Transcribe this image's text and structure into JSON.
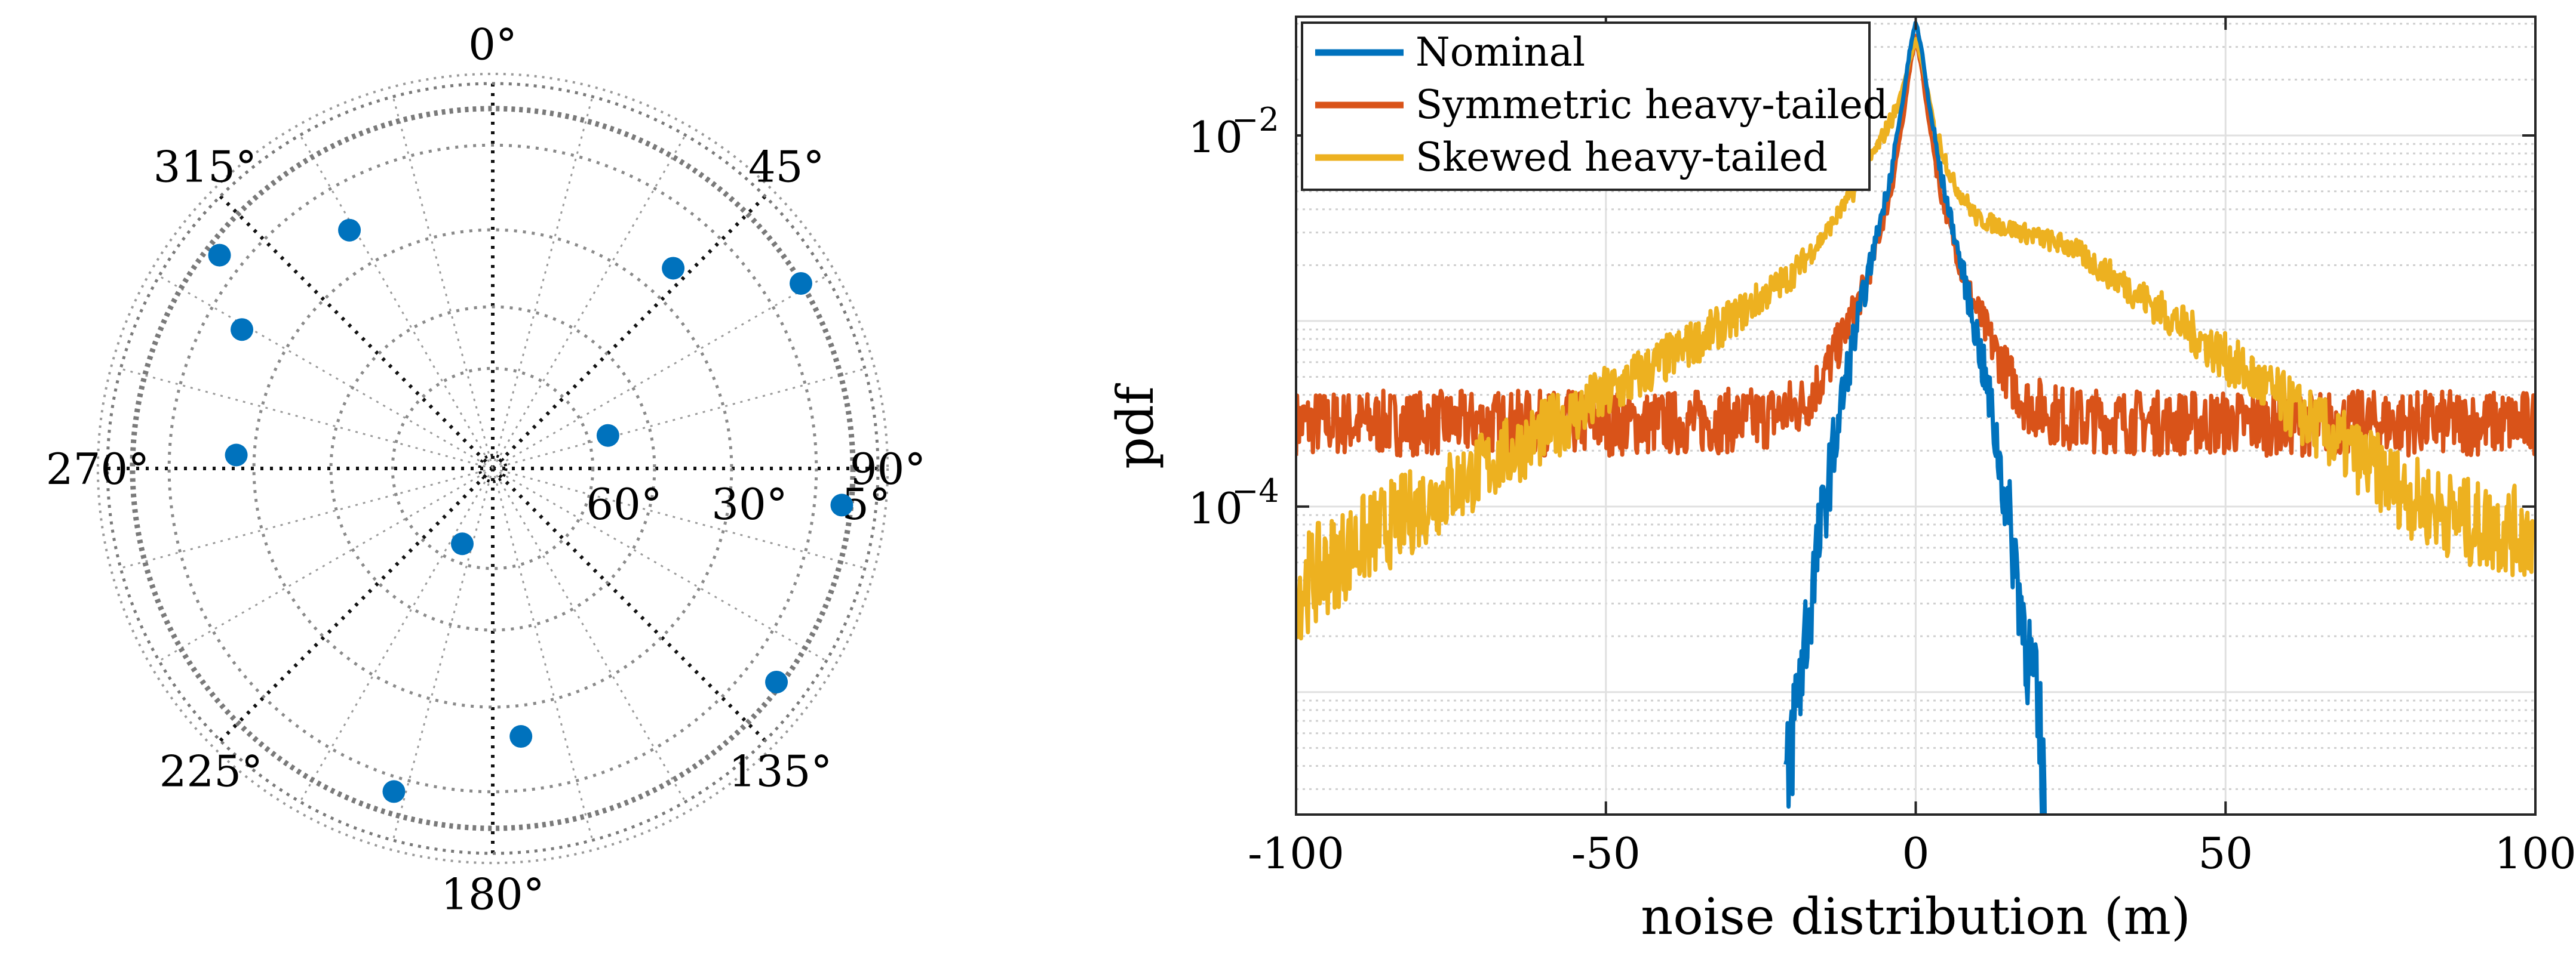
{
  "chart_data": [
    {
      "type": "scatter",
      "subtype": "polar",
      "title": "",
      "angle_ticks": [
        "0°",
        "45°",
        "90°",
        "135°",
        "180°",
        "225°",
        "270°",
        "315°"
      ],
      "angle_tick_values_deg": [
        0,
        45,
        90,
        135,
        180,
        225,
        270,
        315
      ],
      "elevation_labels": [
        "60°",
        "30°",
        "5°"
      ],
      "elevation_label_values_deg": [
        60,
        30,
        5
      ],
      "radial_axis": "elevation angle (90° at center, 0° at outer ring)",
      "marker_color": "#0072BD",
      "points": [
        {
          "azimuth_deg": 329,
          "elevation_deg": 25
        },
        {
          "azimuth_deg": 308,
          "elevation_deg": 9
        },
        {
          "azimuth_deg": 299,
          "elevation_deg": 23
        },
        {
          "azimuth_deg": 273,
          "elevation_deg": 30
        },
        {
          "azimuth_deg": 59,
          "elevation_deg": 6
        },
        {
          "azimuth_deg": 42,
          "elevation_deg": 27
        },
        {
          "azimuth_deg": 74,
          "elevation_deg": 62
        },
        {
          "azimuth_deg": 96,
          "elevation_deg": 8
        },
        {
          "azimuth_deg": 127,
          "elevation_deg": 7
        },
        {
          "azimuth_deg": 174,
          "elevation_deg": 27
        },
        {
          "azimuth_deg": 197,
          "elevation_deg": 11
        },
        {
          "azimuth_deg": 202,
          "elevation_deg": 71
        }
      ]
    },
    {
      "type": "line",
      "title": "",
      "xlabel": "noise distribution (m)",
      "ylabel": "pdf",
      "xlim": [
        -100,
        100
      ],
      "ylog_lim": [
        -5.66,
        -1.36
      ],
      "yscale": "log",
      "xticks": [
        -100,
        -50,
        0,
        50,
        100
      ],
      "xtick_labels": [
        "-100",
        "-50",
        "0",
        "50",
        "100"
      ],
      "yticks_major_exp": [
        -4,
        -2
      ],
      "yticks_base": "10",
      "yticks_exp_labels": [
        "−4",
        "−2"
      ],
      "grid": true,
      "legend_position": "top-left",
      "series": [
        {
          "name": "Nominal",
          "color": "#0072BD",
          "x": [
            -21,
            -20,
            -18,
            -16,
            -14,
            -12,
            -10,
            -8,
            -6,
            -4,
            -2,
            -1,
            0,
            1,
            2,
            4,
            6,
            8,
            10,
            12,
            14,
            16,
            18,
            20,
            21
          ],
          "log10_y": [
            -5.66,
            -5.25,
            -4.75,
            -4.28,
            -3.85,
            -3.45,
            -3.1,
            -2.8,
            -2.5,
            -2.2,
            -1.8,
            -1.55,
            -1.38,
            -1.55,
            -1.8,
            -2.2,
            -2.5,
            -2.8,
            -3.1,
            -3.45,
            -3.85,
            -4.28,
            -4.75,
            -5.25,
            -5.66
          ]
        },
        {
          "name": "Symmetric heavy-tailed",
          "color": "#D95319",
          "x": [
            -100,
            -80,
            -60,
            -40,
            -25,
            -18,
            -15,
            -12,
            -10,
            -8,
            -6,
            -4,
            -2,
            -1,
            0,
            1,
            2,
            4,
            6,
            8,
            10,
            12,
            15,
            18,
            25,
            40,
            60,
            80,
            100
          ],
          "log10_y": [
            -3.55,
            -3.55,
            -3.55,
            -3.55,
            -3.53,
            -3.45,
            -3.3,
            -3.1,
            -2.95,
            -2.8,
            -2.55,
            -2.3,
            -1.9,
            -1.65,
            -1.47,
            -1.65,
            -1.9,
            -2.3,
            -2.55,
            -2.8,
            -2.95,
            -3.1,
            -3.3,
            -3.45,
            -3.53,
            -3.55,
            -3.55,
            -3.55,
            -3.55
          ]
        },
        {
          "name": "Skewed heavy-tailed",
          "color": "#EDB120",
          "x": [
            -100,
            -90,
            -80,
            -70,
            -60,
            -50,
            -40,
            -30,
            -20,
            -15,
            -10,
            -6,
            -3,
            -1,
            0,
            1,
            3,
            6,
            10,
            15,
            20,
            25,
            30,
            40,
            50,
            60,
            70,
            80,
            90,
            100
          ],
          "log10_y": [
            -4.45,
            -4.2,
            -4.0,
            -3.8,
            -3.6,
            -3.4,
            -3.2,
            -3.0,
            -2.75,
            -2.55,
            -2.3,
            -2.05,
            -1.85,
            -1.6,
            -1.48,
            -1.6,
            -1.95,
            -2.25,
            -2.45,
            -2.5,
            -2.55,
            -2.6,
            -2.72,
            -2.95,
            -3.2,
            -3.45,
            -3.7,
            -3.95,
            -4.1,
            -4.15
          ]
        }
      ]
    }
  ]
}
